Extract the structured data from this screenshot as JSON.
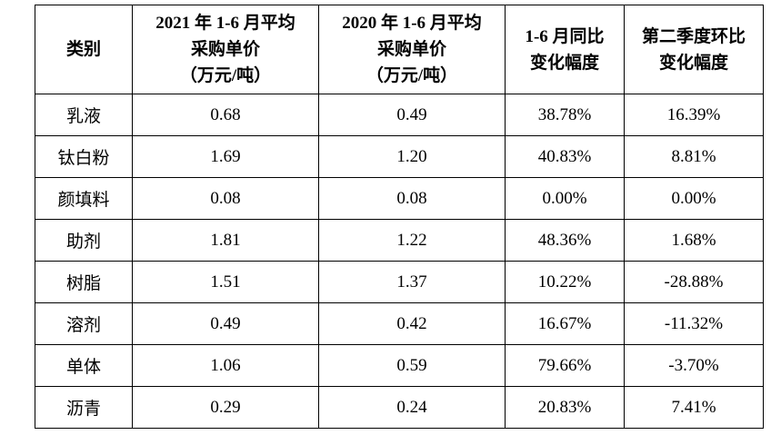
{
  "table": {
    "headers": [
      [
        "类别"
      ],
      [
        "2021 年 1-6 月平均",
        "采购单价",
        "（万元/吨）"
      ],
      [
        "2020 年 1-6 月平均",
        "采购单价",
        "（万元/吨）"
      ],
      [
        "1-6 月同比",
        "变化幅度"
      ],
      [
        "第二季度环比",
        "变化幅度"
      ]
    ],
    "rows": [
      [
        "乳液",
        "0.68",
        "0.49",
        "38.78%",
        "16.39%"
      ],
      [
        "钛白粉",
        "1.69",
        "1.20",
        "40.83%",
        "8.81%"
      ],
      [
        "颜填料",
        "0.08",
        "0.08",
        "0.00%",
        "0.00%"
      ],
      [
        "助剂",
        "1.81",
        "1.22",
        "48.36%",
        "1.68%"
      ],
      [
        "树脂",
        "1.51",
        "1.37",
        "10.22%",
        "-28.88%"
      ],
      [
        "溶剂",
        "0.49",
        "0.42",
        "16.67%",
        "-11.32%"
      ],
      [
        "单体",
        "1.06",
        "0.59",
        "79.66%",
        "-3.70%"
      ],
      [
        "沥青",
        "0.29",
        "0.24",
        "20.83%",
        "7.41%"
      ]
    ]
  }
}
